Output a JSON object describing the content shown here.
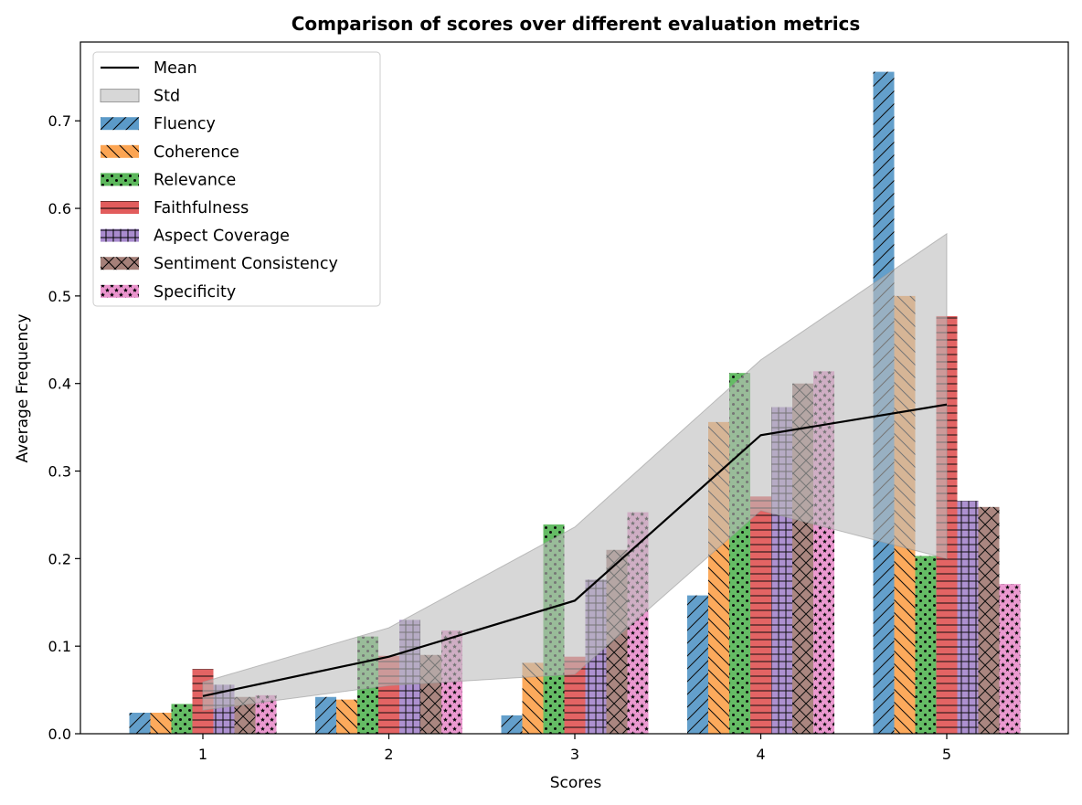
{
  "chart_data": {
    "type": "bar",
    "title": "Comparison of scores over different evaluation metrics",
    "xlabel": "Scores",
    "ylabel": "Average Frequency",
    "categories": [
      "1",
      "2",
      "3",
      "4",
      "5"
    ],
    "ylim": [
      0,
      0.79
    ],
    "yticks": [
      "0.0",
      "0.1",
      "0.2",
      "0.3",
      "0.4",
      "0.5",
      "0.6",
      "0.7"
    ],
    "legend_position": "upper-left",
    "series": [
      {
        "name": "Fluency",
        "values": [
          0.024,
          0.042,
          0.021,
          0.158,
          0.756
        ],
        "color": "#5b9ac8",
        "hatch": "diag-forward"
      },
      {
        "name": "Coherence",
        "values": [
          0.024,
          0.039,
          0.081,
          0.356,
          0.5
        ],
        "color": "#fca553",
        "hatch": "diag-back"
      },
      {
        "name": "Relevance",
        "values": [
          0.034,
          0.111,
          0.239,
          0.412,
          0.203
        ],
        "color": "#5db85d",
        "hatch": "dots"
      },
      {
        "name": "Faithfulness",
        "values": [
          0.074,
          0.089,
          0.088,
          0.271,
          0.477
        ],
        "color": "#e25c5c",
        "hatch": "horizontal"
      },
      {
        "name": "Aspect Coverage",
        "values": [
          0.056,
          0.13,
          0.176,
          0.373,
          0.266
        ],
        "color": "#a98bce",
        "hatch": "grid"
      },
      {
        "name": "Sentiment Consistency",
        "values": [
          0.042,
          0.09,
          0.21,
          0.4,
          0.259
        ],
        "color": "#a58079",
        "hatch": "cross"
      },
      {
        "name": "Specificity",
        "values": [
          0.044,
          0.118,
          0.253,
          0.414,
          0.171
        ],
        "color": "#ea94cd",
        "hatch": "stars"
      }
    ],
    "mean": {
      "name": "Mean",
      "values": [
        0.043,
        0.088,
        0.152,
        0.341,
        0.376
      ],
      "color": "#000000"
    },
    "std": {
      "name": "Std",
      "lower": [
        0.027,
        0.055,
        0.068,
        0.255,
        0.2
      ],
      "upper": [
        0.059,
        0.121,
        0.236,
        0.427,
        0.571
      ],
      "color": "#bdbdbd"
    }
  }
}
